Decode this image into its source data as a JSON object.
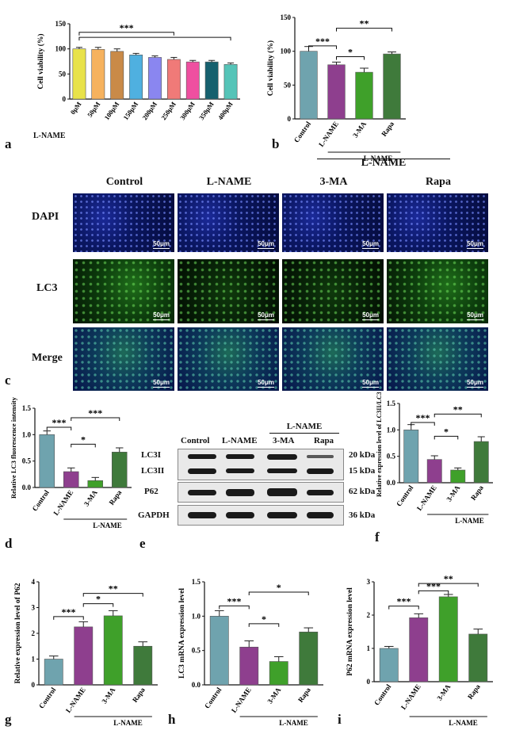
{
  "panels": {
    "a": {
      "label": "a",
      "ylabel": "Cell viability (%)",
      "xgroup": "L-NAME",
      "yticks": [
        "0",
        "50",
        "100",
        "150"
      ],
      "categories": [
        "0μM",
        "50μM",
        "100μM",
        "150μM",
        "200μM",
        "250μM",
        "300μM",
        "350μM",
        "400μM"
      ],
      "sig": "***"
    },
    "b": {
      "label": "b",
      "ylabel": "Cell viability (%)",
      "yticks": [
        "0",
        "50",
        "100",
        "150"
      ],
      "categories": [
        "Control",
        "L-NAME",
        "3-MA",
        "Rapa"
      ],
      "group": "L-NAME",
      "sig": [
        "***",
        "*",
        "**"
      ]
    },
    "c": {
      "label": "c",
      "group": "L-NAME",
      "columns": [
        "Control",
        "L-NAME",
        "3-MA",
        "Rapa"
      ],
      "rows": [
        "DAPI",
        "LC3",
        "Merge"
      ],
      "scale": "50μm"
    },
    "d": {
      "label": "d",
      "ylabel": "Relative LC3 fluorescence intensity",
      "yticks": [
        "0.0",
        "0.5",
        "1.0",
        "1.5"
      ],
      "categories": [
        "Control",
        "L-NAME",
        "3-MA",
        "Rapa"
      ],
      "group": "L-NAME",
      "sig": [
        "***",
        "*",
        "***"
      ]
    },
    "e": {
      "label": "e",
      "group": "L-NAME",
      "columns": [
        "Control",
        "L-NAME",
        "3-MA",
        "Rapa"
      ],
      "rows": [
        "LC3I",
        "LC3II",
        "P62",
        "GAPDH"
      ],
      "kda": [
        "20 kDa",
        "15 kDa",
        "62 kDa",
        "36 kDa"
      ]
    },
    "f": {
      "label": "f",
      "ylabel": "Relative expression level of LC3II/LC3I",
      "yticks": [
        "0.0",
        "0.5",
        "1.0",
        "1.5"
      ],
      "categories": [
        "Control",
        "L-NAME",
        "3-MA",
        "Rapa"
      ],
      "group": "L-NAME",
      "sig": [
        "***",
        "*",
        "**"
      ]
    },
    "g": {
      "label": "g",
      "ylabel": "Relative expression level of P62",
      "yticks": [
        "0",
        "1",
        "2",
        "3",
        "4"
      ],
      "categories": [
        "Control",
        "L-NAME",
        "3-MA",
        "Rapa"
      ],
      "group": "L-NAME",
      "sig": [
        "***",
        "*",
        "**"
      ]
    },
    "h": {
      "label": "h",
      "ylabel": "LC3 mRNA expression level",
      "yticks": [
        "0.0",
        "0.5",
        "1.0",
        "1.5"
      ],
      "categories": [
        "Control",
        "L-NAME",
        "3-MA",
        "Rapa"
      ],
      "group": "L-NAME",
      "sig": [
        "***",
        "*",
        "*"
      ]
    },
    "i": {
      "label": "i",
      "ylabel": "P62 mRNA expression level",
      "yticks": [
        "0",
        "1",
        "2",
        "3"
      ],
      "categories": [
        "Control",
        "L-NAME",
        "3-MA",
        "Rapa"
      ],
      "group": "L-NAME",
      "sig": [
        "***",
        "***",
        "**"
      ]
    }
  },
  "colors": {
    "control": "#6fa3ae",
    "lname": "#8e3f8e",
    "ma": "#3fa02a",
    "rapa": "#3f7a3b"
  },
  "chart_data": [
    {
      "id": "a",
      "type": "bar",
      "categories": [
        "0μM",
        "50μM",
        "100μM",
        "150μM",
        "200μM",
        "250μM",
        "300μM",
        "350μM",
        "400μM"
      ],
      "values": [
        100,
        99,
        95,
        88,
        83,
        79,
        74,
        74,
        69
      ],
      "errors": [
        3,
        4,
        5,
        3,
        3,
        4,
        3,
        3,
        3
      ],
      "ylim": [
        0,
        150
      ],
      "colors": [
        "#e8e24a",
        "#f6b25e",
        "#c98a48",
        "#4fb0e0",
        "#8a86f0",
        "#f07a78",
        "#ef4fa0",
        "#16606e",
        "#55c4b8"
      ]
    },
    {
      "id": "b",
      "type": "bar",
      "categories": [
        "Control",
        "L-NAME",
        "3-MA",
        "Rapa"
      ],
      "values": [
        100,
        80,
        69,
        96
      ],
      "errors": [
        7,
        4,
        6,
        3
      ],
      "ylim": [
        0,
        150
      ]
    },
    {
      "id": "d",
      "type": "bar",
      "categories": [
        "Control",
        "L-NAME",
        "3-MA",
        "Rapa"
      ],
      "values": [
        1.0,
        0.3,
        0.13,
        0.67
      ],
      "errors": [
        0.07,
        0.07,
        0.06,
        0.08
      ],
      "ylim": [
        0,
        1.5
      ]
    },
    {
      "id": "f",
      "type": "bar",
      "categories": [
        "Control",
        "L-NAME",
        "3-MA",
        "Rapa"
      ],
      "values": [
        1.0,
        0.44,
        0.24,
        0.78
      ],
      "errors": [
        0.1,
        0.07,
        0.04,
        0.09
      ],
      "ylim": [
        0,
        1.5
      ]
    },
    {
      "id": "g",
      "type": "bar",
      "categories": [
        "Control",
        "L-NAME",
        "3-MA",
        "Rapa"
      ],
      "values": [
        1.0,
        2.25,
        2.68,
        1.5
      ],
      "errors": [
        0.12,
        0.2,
        0.2,
        0.17
      ],
      "ylim": [
        0,
        4
      ]
    },
    {
      "id": "h",
      "type": "bar",
      "categories": [
        "Control",
        "L-NAME",
        "3-MA",
        "Rapa"
      ],
      "values": [
        1.0,
        0.55,
        0.34,
        0.77
      ],
      "errors": [
        0.08,
        0.09,
        0.07,
        0.06
      ],
      "ylim": [
        0,
        1.5
      ]
    },
    {
      "id": "i",
      "type": "bar",
      "categories": [
        "Control",
        "L-NAME",
        "3-MA",
        "Rapa"
      ],
      "values": [
        1.0,
        1.92,
        2.55,
        1.43
      ],
      "errors": [
        0.06,
        0.12,
        0.07,
        0.15
      ],
      "ylim": [
        0,
        3
      ]
    }
  ]
}
